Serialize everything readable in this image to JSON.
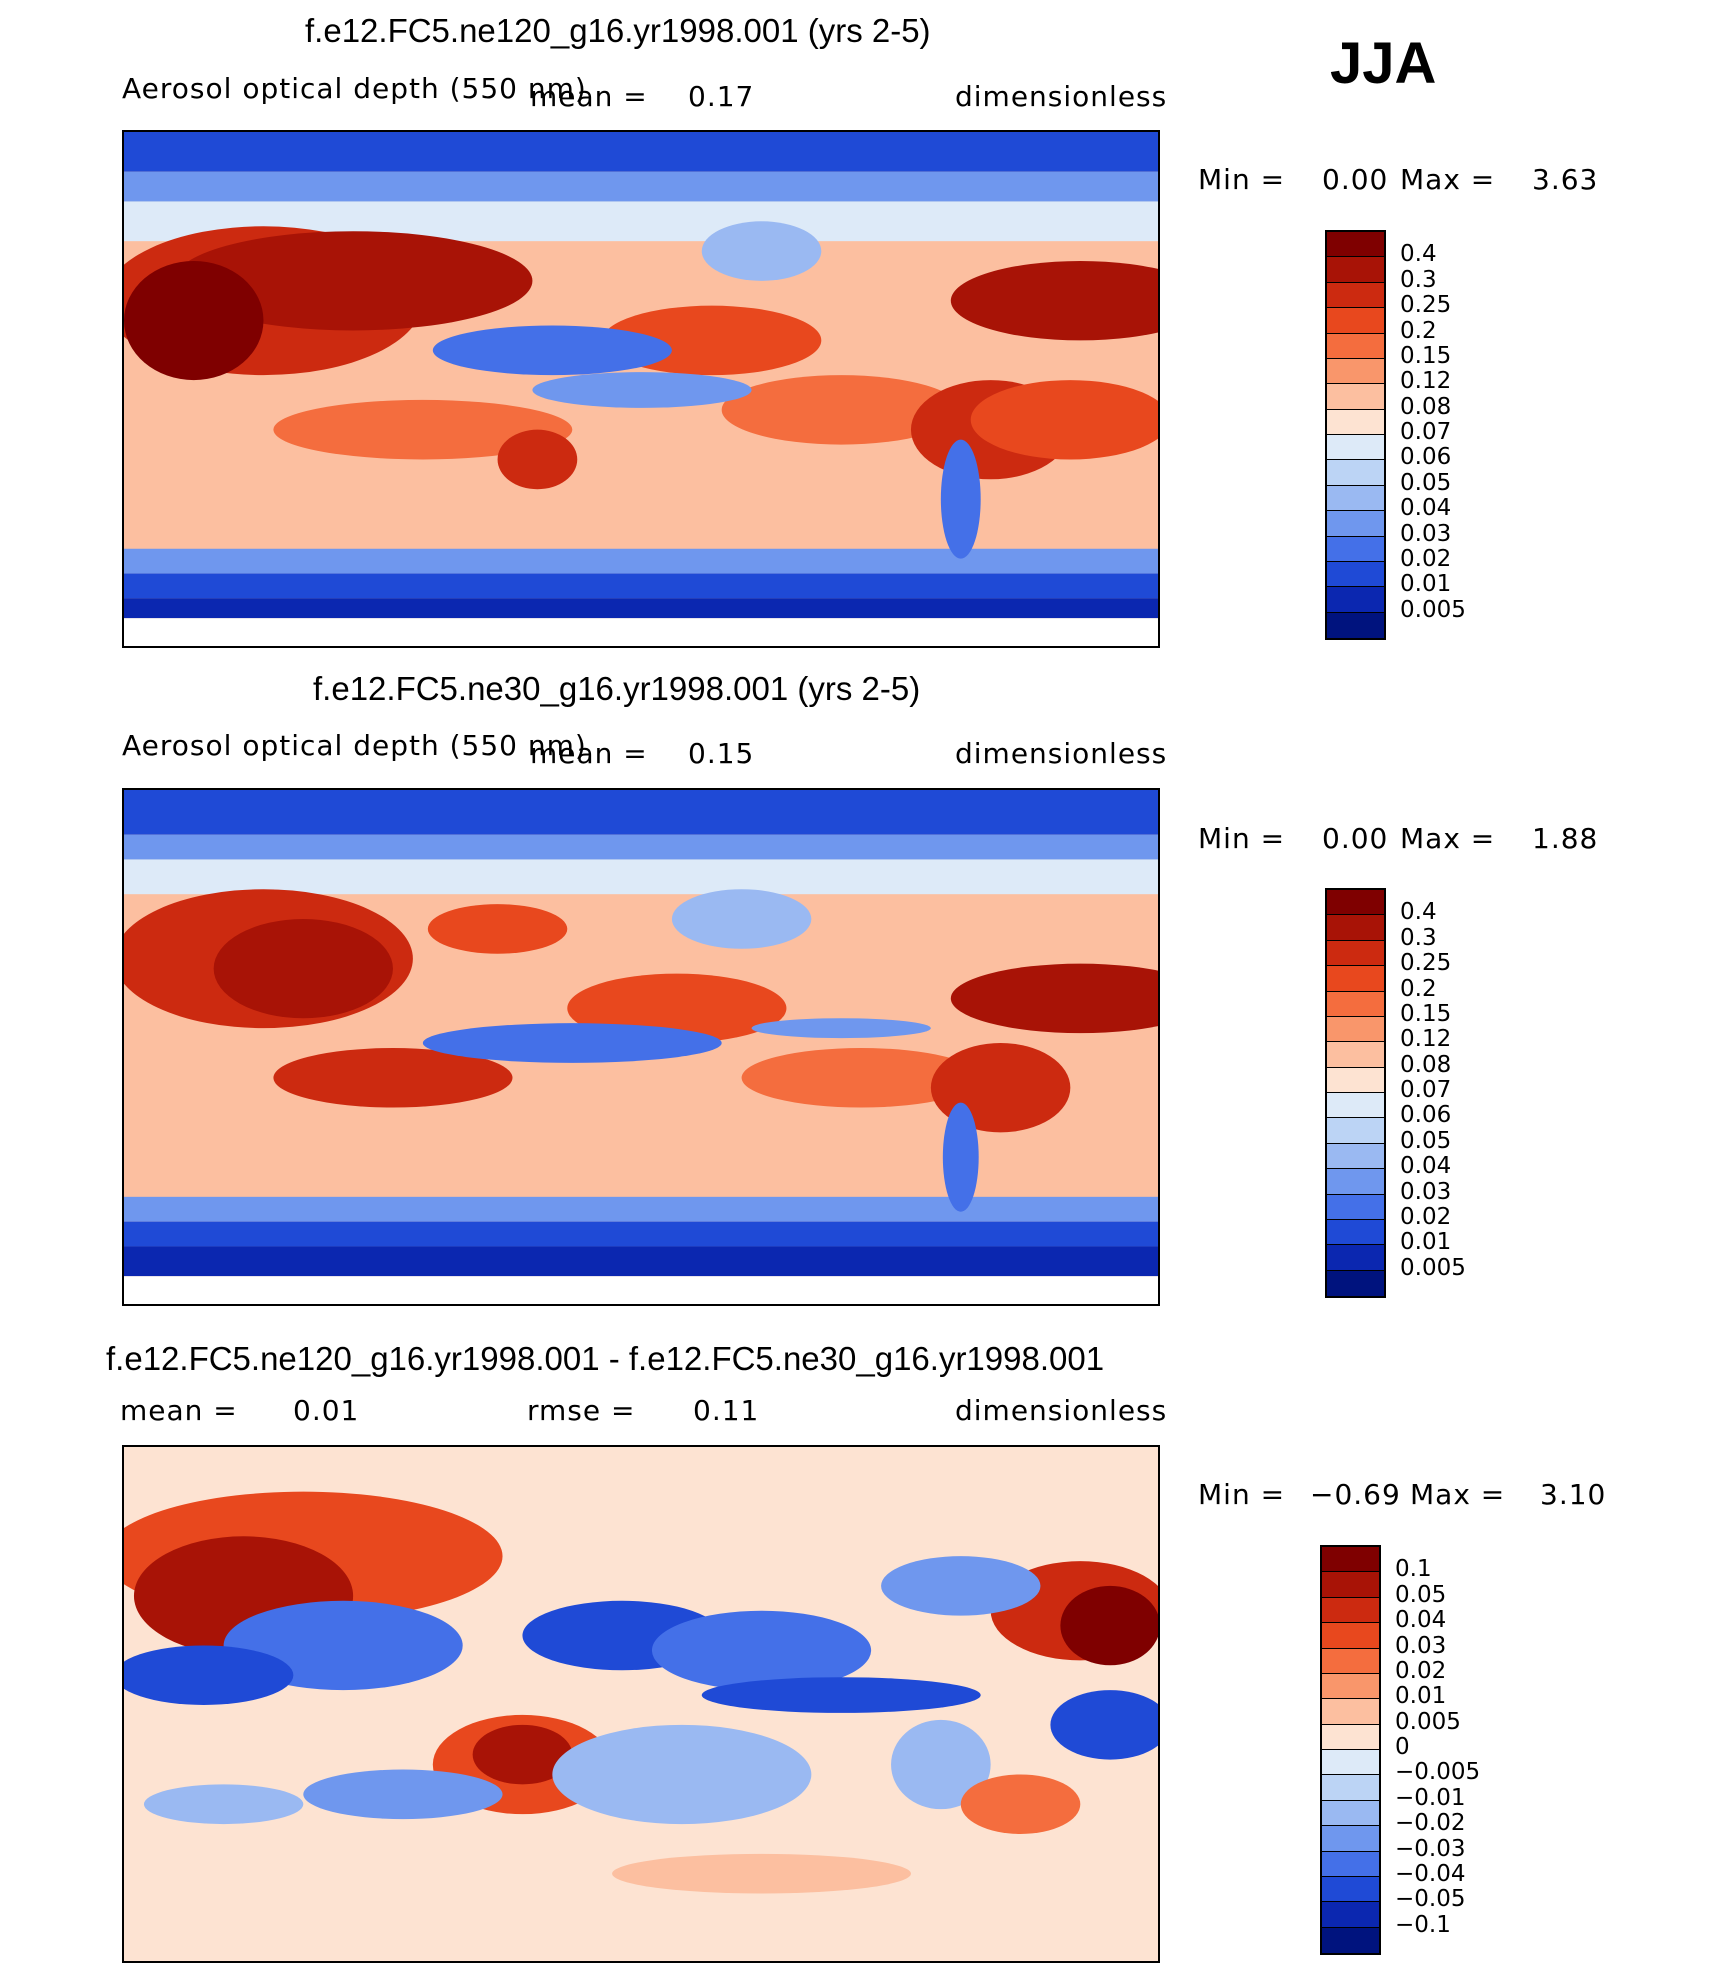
{
  "season": "JJA",
  "panels": [
    {
      "title": "f.e12.FC5.ne120_g16.yr1998.001 (yrs 2-5)",
      "left_label": "Aerosol optical depth (550 nm)",
      "mean_label": "mean =",
      "mean_value": "0.17",
      "units": "dimensionless",
      "min_label": "Min =",
      "min_value": "0.00",
      "max_label": "Max =",
      "max_value": "3.63",
      "colorbar_labels": [
        "0.4",
        "0.3",
        "0.25",
        "0.2",
        "0.15",
        "0.12",
        "0.08",
        "0.07",
        "0.06",
        "0.05",
        "0.04",
        "0.03",
        "0.02",
        "0.01",
        "0.005"
      ]
    },
    {
      "title": "f.e12.FC5.ne30_g16.yr1998.001 (yrs 2-5)",
      "left_label": "Aerosol optical depth (550 nm)",
      "mean_label": "mean =",
      "mean_value": "0.15",
      "units": "dimensionless",
      "min_label": "Min =",
      "min_value": "0.00",
      "max_label": "Max =",
      "max_value": "1.88",
      "colorbar_labels": [
        "0.4",
        "0.3",
        "0.25",
        "0.2",
        "0.15",
        "0.12",
        "0.08",
        "0.07",
        "0.06",
        "0.05",
        "0.04",
        "0.03",
        "0.02",
        "0.01",
        "0.005"
      ]
    },
    {
      "title": "f.e12.FC5.ne120_g16.yr1998.001 - f.e12.FC5.ne30_g16.yr1998.001",
      "mean_label": "mean =",
      "mean_value": "0.01",
      "rmse_label": "rmse =",
      "rmse_value": "0.11",
      "units": "dimensionless",
      "min_label": "Min =",
      "min_value": "−0.69",
      "max_label": "Max =",
      "max_value": "3.10",
      "colorbar_labels": [
        "0.1",
        "0.05",
        "0.04",
        "0.03",
        "0.02",
        "0.01",
        "0.005",
        "0",
        "−0.005",
        "−0.01",
        "−0.02",
        "−0.03",
        "−0.04",
        "−0.05",
        "−0.1"
      ]
    }
  ],
  "colors": {
    "scale_16": [
      "#7f0000",
      "#a81306",
      "#cc2a10",
      "#e8481e",
      "#f46d3e",
      "#f9966b",
      "#fcbfa0",
      "#fde3d2",
      "#ddeaf8",
      "#bcd4f5",
      "#9ab9f2",
      "#6f97ee",
      "#4470e8",
      "#1f4ad6",
      "#0b27b0",
      "#00137e"
    ],
    "land_outline": "#000000"
  }
}
